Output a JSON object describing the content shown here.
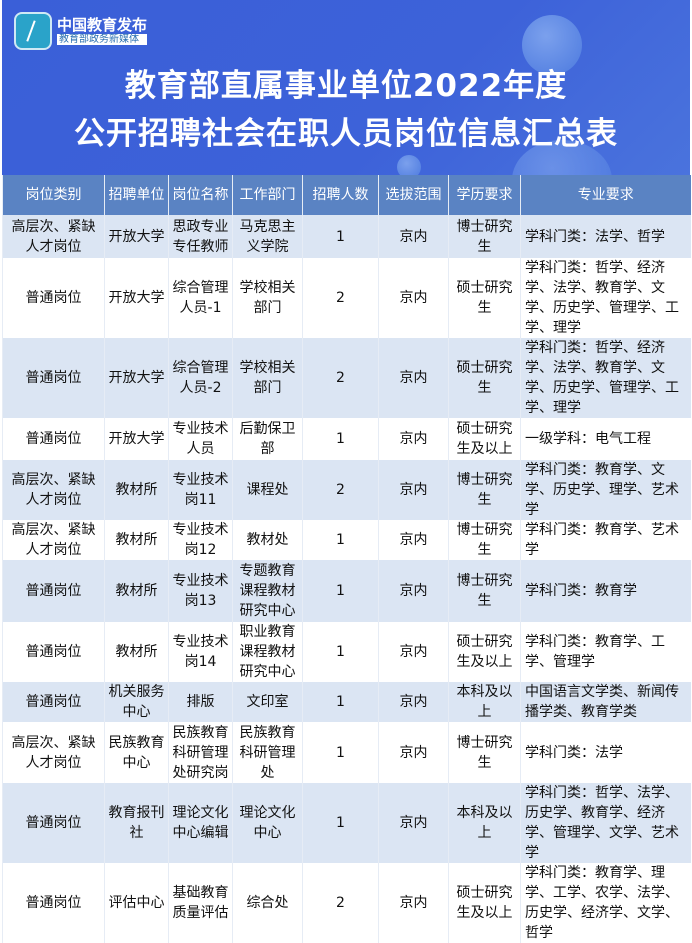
{
  "logo": {
    "name": "中国教育发布",
    "subtitle": "教育部政务新媒体"
  },
  "title": {
    "line1": "教育部直属事业单位2022年度",
    "line2": "公开招聘社会在职人员岗位信息汇总表"
  },
  "colors": {
    "banner": "#3d62d9",
    "header_row": "#5a83c3",
    "alt_row": "#dbe5f3"
  },
  "table": {
    "headers": [
      "岗位类别",
      "招聘单位",
      "岗位名称",
      "工作部门",
      "招聘人数",
      "选拔范围",
      "学历要求",
      "专业要求"
    ],
    "rows": [
      [
        "高层次、紧缺人才岗位",
        "开放大学",
        "思政专业专任教师",
        "马克思主义学院",
        "1",
        "京内",
        "博士研究生",
        "学科门类：法学、哲学"
      ],
      [
        "普通岗位",
        "开放大学",
        "综合管理人员-1",
        "学校相关部门",
        "2",
        "京内",
        "硕士研究生",
        "学科门类：哲学、经济学、法学、教育学、文学、历史学、管理学、工学、理学"
      ],
      [
        "普通岗位",
        "开放大学",
        "综合管理人员-2",
        "学校相关部门",
        "2",
        "京内",
        "硕士研究生",
        "学科门类：哲学、经济学、法学、教育学、文学、历史学、管理学、工学、理学"
      ],
      [
        "普通岗位",
        "开放大学",
        "专业技术人员",
        "后勤保卫部",
        "1",
        "京内",
        "硕士研究生及以上",
        "一级学科：电气工程"
      ],
      [
        "高层次、紧缺人才岗位",
        "教材所",
        "专业技术岗11",
        "课程处",
        "2",
        "京内",
        "博士研究生",
        "学科门类：教育学、文学、历史学、理学、艺术学"
      ],
      [
        "高层次、紧缺人才岗位",
        "教材所",
        "专业技术岗12",
        "教材处",
        "1",
        "京内",
        "博士研究生",
        "学科门类：教育学、艺术学"
      ],
      [
        "普通岗位",
        "教材所",
        "专业技术岗13",
        "专题教育课程教材研究中心",
        "1",
        "京内",
        "博士研究生",
        "学科门类：教育学"
      ],
      [
        "普通岗位",
        "教材所",
        "专业技术岗14",
        "职业教育课程教材研究中心",
        "1",
        "京内",
        "硕士研究生及以上",
        "学科门类：教育学、工学、管理学"
      ],
      [
        "普通岗位",
        "机关服务中心",
        "排版",
        "文印室",
        "1",
        "京内",
        "本科及以上",
        "中国语言文学类、新闻传播学类、教育学类"
      ],
      [
        "高层次、紧缺人才岗位",
        "民族教育中心",
        "民族教育科研管理处研究岗",
        "民族教育科研管理处",
        "1",
        "京内",
        "博士研究生",
        "学科门类：法学"
      ],
      [
        "普通岗位",
        "教育报刊社",
        "理论文化中心编辑",
        "理论文化中心",
        "1",
        "京内",
        "本科及以上",
        "学科门类：哲学、法学、历史学、教育学、经济学、管理学、文学、艺术学"
      ],
      [
        "普通岗位",
        "评估中心",
        "基础教育质量评估",
        "综合处",
        "2",
        "京内",
        "硕士研究生及以上",
        "学科门类：教育学、理学、工学、农学、法学、历史学、经济学、文学、哲学"
      ]
    ]
  }
}
